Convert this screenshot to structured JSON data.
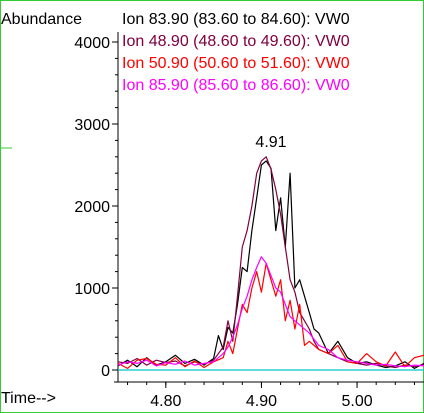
{
  "chart_data": {
    "type": "line",
    "ylabel": "Abundance",
    "xlabel": "Time-->",
    "xlim": [
      4.75,
      5.07
    ],
    "ylim": [
      0,
      4000
    ],
    "x_ticks": [
      "4.80",
      "4.90",
      "5.00"
    ],
    "x_tick_values": [
      4.8,
      4.9,
      5.0
    ],
    "y_ticks": [
      "0",
      "1000",
      "2000",
      "3000",
      "4000"
    ],
    "y_tick_values": [
      0,
      1000,
      2000,
      3000,
      4000
    ],
    "grid": false,
    "legend_position": "top",
    "peak_annotation": {
      "label": "4.91",
      "x": 4.91,
      "y": 2600
    },
    "series": [
      {
        "name": "Ion  83.90 (83.60 to 84.60): VW0",
        "color": "#000000",
        "x": [
          4.75,
          4.76,
          4.77,
          4.78,
          4.79,
          4.8,
          4.81,
          4.82,
          4.83,
          4.84,
          4.85,
          4.855,
          4.86,
          4.865,
          4.87,
          4.875,
          4.88,
          4.885,
          4.89,
          4.895,
          4.9,
          4.905,
          4.91,
          4.915,
          4.92,
          4.925,
          4.93,
          4.935,
          4.94,
          4.945,
          4.95,
          4.955,
          4.96,
          4.97,
          4.98,
          4.99,
          5.0,
          5.01,
          5.02,
          5.03,
          5.04,
          5.05,
          5.06,
          5.07
        ],
        "y": [
          50,
          120,
          40,
          150,
          60,
          100,
          180,
          80,
          130,
          60,
          140,
          420,
          250,
          520,
          450,
          800,
          1250,
          1200,
          1700,
          2100,
          2500,
          2550,
          2460,
          1700,
          2100,
          1500,
          2400,
          1000,
          1100,
          900,
          700,
          500,
          450,
          200,
          350,
          150,
          80,
          100,
          60,
          30,
          50,
          100,
          20,
          80
        ]
      },
      {
        "name": "Ion  48.90 (48.60 to 49.60): VW0",
        "color": "#800040",
        "x": [
          4.75,
          4.76,
          4.77,
          4.78,
          4.79,
          4.8,
          4.81,
          4.82,
          4.83,
          4.84,
          4.85,
          4.86,
          4.865,
          4.87,
          4.875,
          4.88,
          4.885,
          4.89,
          4.895,
          4.9,
          4.905,
          4.91,
          4.915,
          4.92,
          4.925,
          4.93,
          4.935,
          4.94,
          4.945,
          4.95,
          4.955,
          4.96,
          4.97,
          4.98,
          4.99,
          5.0,
          5.01,
          5.02,
          5.03,
          5.04,
          5.05,
          5.06,
          5.07
        ],
        "y": [
          100,
          80,
          140,
          60,
          120,
          90,
          110,
          50,
          100,
          70,
          120,
          280,
          600,
          350,
          900,
          1500,
          1700,
          2000,
          2400,
          2550,
          2600,
          2450,
          2200,
          1900,
          1500,
          1100,
          950,
          700,
          600,
          500,
          350,
          250,
          200,
          150,
          100,
          80,
          60,
          80,
          50,
          30,
          60,
          40,
          70
        ]
      },
      {
        "name": "Ion  50.90 (50.60 to 51.60): VW0",
        "color": "#ff0000",
        "x": [
          4.75,
          4.76,
          4.77,
          4.78,
          4.79,
          4.8,
          4.81,
          4.82,
          4.83,
          4.84,
          4.85,
          4.86,
          4.865,
          4.87,
          4.875,
          4.88,
          4.885,
          4.89,
          4.895,
          4.9,
          4.905,
          4.91,
          4.915,
          4.92,
          4.925,
          4.93,
          4.935,
          4.94,
          4.945,
          4.95,
          4.96,
          4.97,
          4.98,
          4.99,
          5.0,
          5.01,
          5.02,
          5.03,
          5.04,
          5.05,
          5.06,
          5.07
        ],
        "y": [
          80,
          20,
          120,
          140,
          70,
          60,
          150,
          40,
          110,
          30,
          100,
          150,
          350,
          200,
          500,
          800,
          700,
          1000,
          1200,
          950,
          1300,
          1100,
          900,
          1100,
          600,
          850,
          500,
          800,
          300,
          350,
          250,
          200,
          300,
          100,
          80,
          200,
          100,
          50,
          220,
          40,
          150,
          180
        ]
      },
      {
        "name": "Ion  85.90 (85.60 to 86.60): VW0",
        "color": "#ff00ff",
        "x": [
          4.75,
          4.76,
          4.77,
          4.78,
          4.79,
          4.8,
          4.81,
          4.82,
          4.83,
          4.84,
          4.85,
          4.86,
          4.865,
          4.87,
          4.875,
          4.88,
          4.885,
          4.89,
          4.895,
          4.9,
          4.905,
          4.91,
          4.915,
          4.92,
          4.925,
          4.93,
          4.935,
          4.94,
          4.95,
          4.96,
          4.97,
          4.98,
          4.99,
          5.0,
          5.01,
          5.02,
          5.03,
          5.04,
          5.05,
          5.06,
          5.07
        ],
        "y": [
          60,
          100,
          80,
          120,
          50,
          90,
          70,
          110,
          60,
          80,
          100,
          200,
          280,
          400,
          550,
          750,
          900,
          1100,
          1250,
          1380,
          1300,
          1150,
          1000,
          950,
          800,
          650,
          600,
          550,
          450,
          300,
          250,
          150,
          120,
          100,
          80,
          60,
          70,
          50,
          40,
          60,
          50
        ]
      },
      {
        "name": "",
        "color": "#00c8c8",
        "x": [
          4.75,
          4.85,
          4.9,
          4.95,
          4.995,
          5.0,
          5.07
        ],
        "y": [
          0,
          0,
          0,
          0,
          0,
          0,
          0
        ]
      }
    ]
  }
}
